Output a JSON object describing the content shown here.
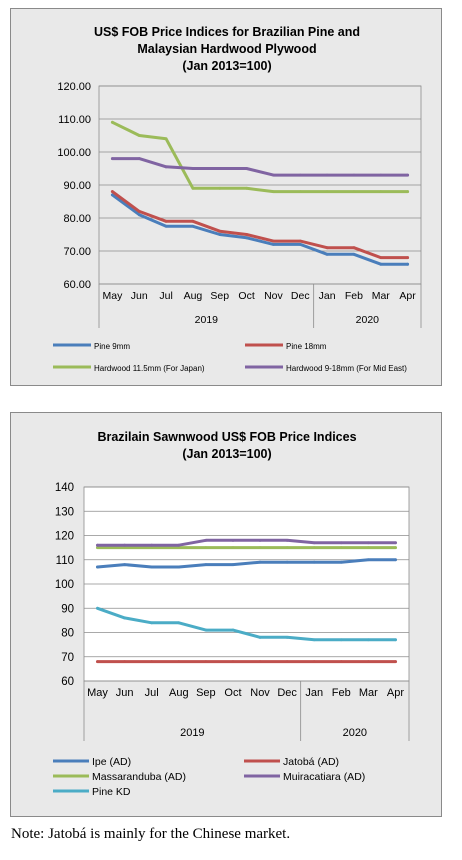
{
  "chart_data": [
    {
      "type": "line",
      "title": "US$ FOB Price Indices for Brazilian Pine and",
      "subtitle": "Malaysian Hardwood Plywood",
      "subtitle2": "(Jan 2013=100)",
      "categories": [
        "May",
        "Jun",
        "Jul",
        "Aug",
        "Sep",
        "Oct",
        "Nov",
        "Dec",
        "Jan",
        "Feb",
        "Mar",
        "Apr"
      ],
      "years": [
        "2019",
        "2020"
      ],
      "ylim": [
        60,
        120
      ],
      "yticks": [
        "60.00",
        "70.00",
        "80.00",
        "90.00",
        "100.00",
        "110.00",
        "120.00"
      ],
      "grid": "horizontal",
      "legend_position": "bottom",
      "series": [
        {
          "name": "Pine 9mm",
          "color": "#4a7ebb",
          "values": [
            87,
            81,
            77.5,
            77.5,
            75,
            74,
            72,
            72,
            69,
            69,
            66,
            66
          ]
        },
        {
          "name": "Pine 18mm",
          "color": "#c0504d",
          "values": [
            88,
            82,
            79,
            79,
            76,
            75,
            73,
            73,
            71,
            71,
            68,
            68
          ]
        },
        {
          "name": "Hardwood 11.5mm (For Japan)",
          "color": "#9bbb59",
          "values": [
            109,
            105,
            104,
            89,
            89,
            89,
            88,
            88,
            88,
            88,
            88,
            88
          ]
        },
        {
          "name": "Hardwood 9-18mm (For Mid East)",
          "color": "#8064a2",
          "values": [
            98,
            98,
            95.5,
            95,
            95,
            95,
            93,
            93,
            93,
            93,
            93,
            93
          ]
        }
      ]
    },
    {
      "type": "line",
      "title": "Brazilain Sawnwood US$ FOB Price Indices",
      "subtitle": "(Jan 2013=100)",
      "categories": [
        "May",
        "Jun",
        "Jul",
        "Aug",
        "Sep",
        "Oct",
        "Nov",
        "Dec",
        "Jan",
        "Feb",
        "Mar",
        "Apr"
      ],
      "years": [
        "2019",
        "2020"
      ],
      "ylim": [
        60,
        140
      ],
      "yticks": [
        "60",
        "70",
        "80",
        "90",
        "100",
        "110",
        "120",
        "130",
        "140"
      ],
      "grid": "horizontal",
      "legend_position": "bottom",
      "series": [
        {
          "name": "Ipe (AD)",
          "color": "#4a7ebb",
          "values": [
            107,
            108,
            107,
            107,
            108,
            108,
            109,
            109,
            109,
            109,
            110,
            110
          ]
        },
        {
          "name": "Jatobá (AD)",
          "color": "#c0504d",
          "values": [
            68,
            68,
            68,
            68,
            68,
            68,
            68,
            68,
            68,
            68,
            68,
            68
          ]
        },
        {
          "name": "Massaranduba (AD)",
          "color": "#9bbb59",
          "values": [
            115,
            115,
            115,
            115,
            115,
            115,
            115,
            115,
            115,
            115,
            115,
            115
          ]
        },
        {
          "name": "Muiracatiara (AD)",
          "color": "#8064a2",
          "values": [
            116,
            116,
            116,
            116,
            118,
            118,
            118,
            118,
            117,
            117,
            117,
            117
          ]
        },
        {
          "name": "Pine KD",
          "color": "#4bacc6",
          "values": [
            90,
            86,
            84,
            84,
            81,
            81,
            78,
            78,
            77,
            77,
            77,
            77
          ]
        }
      ]
    }
  ],
  "note": "Note: Jatobá is mainly for the Chinese market."
}
